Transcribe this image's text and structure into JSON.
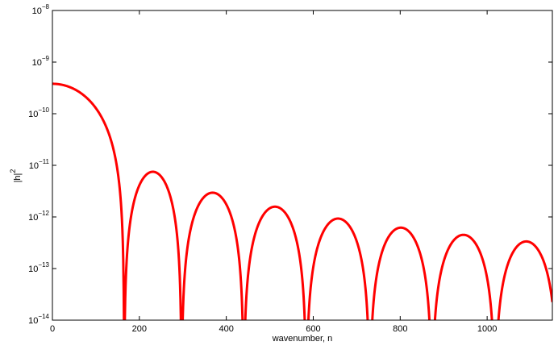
{
  "chart_data": {
    "type": "line",
    "title": "",
    "xlabel": "wavenumber, n",
    "ylabel": "|h|",
    "ylabel_superscript": "2",
    "yscale": "log",
    "xlim": [
      0,
      1150
    ],
    "ylim": [
      1e-14,
      1e-08
    ],
    "grid": false,
    "legend": "none",
    "x_ticks": [
      {
        "value": 0,
        "label": "0"
      },
      {
        "value": 200,
        "label": "200"
      },
      {
        "value": 400,
        "label": "400"
      },
      {
        "value": 600,
        "label": "600"
      },
      {
        "value": 800,
        "label": "800"
      },
      {
        "value": 1000,
        "label": "1000"
      }
    ],
    "y_ticks": [
      {
        "exp": -14,
        "base": "10",
        "sup": "−14"
      },
      {
        "exp": -13,
        "base": "10",
        "sup": "−13"
      },
      {
        "exp": -12,
        "base": "10",
        "sup": "−12"
      },
      {
        "exp": -11,
        "base": "10",
        "sup": "−11"
      },
      {
        "exp": -10,
        "base": "10",
        "sup": "−10"
      },
      {
        "exp": -9,
        "base": "10",
        "sup": "−9"
      },
      {
        "exp": -8,
        "base": "10",
        "sup": "−8"
      }
    ],
    "series": [
      {
        "color": "#ff0000",
        "nodes": [
          0,
          165,
          297,
          440,
          584,
          730,
          873,
          1018
        ],
        "peaks": [
          {
            "x": 0,
            "y": 3.8e-10
          },
          {
            "x": 220,
            "y": 7.5e-12
          },
          {
            "x": 363,
            "y": 2.95e-12
          },
          {
            "x": 507,
            "y": 1.58e-12
          },
          {
            "x": 655,
            "y": 9.3e-13
          },
          {
            "x": 800,
            "y": 6.2e-13
          },
          {
            "x": 943,
            "y": 4.5e-13
          },
          {
            "x": 1090,
            "y": 3.35e-13
          }
        ],
        "end": {
          "x": 1150,
          "y": 3e-14
        }
      }
    ]
  }
}
